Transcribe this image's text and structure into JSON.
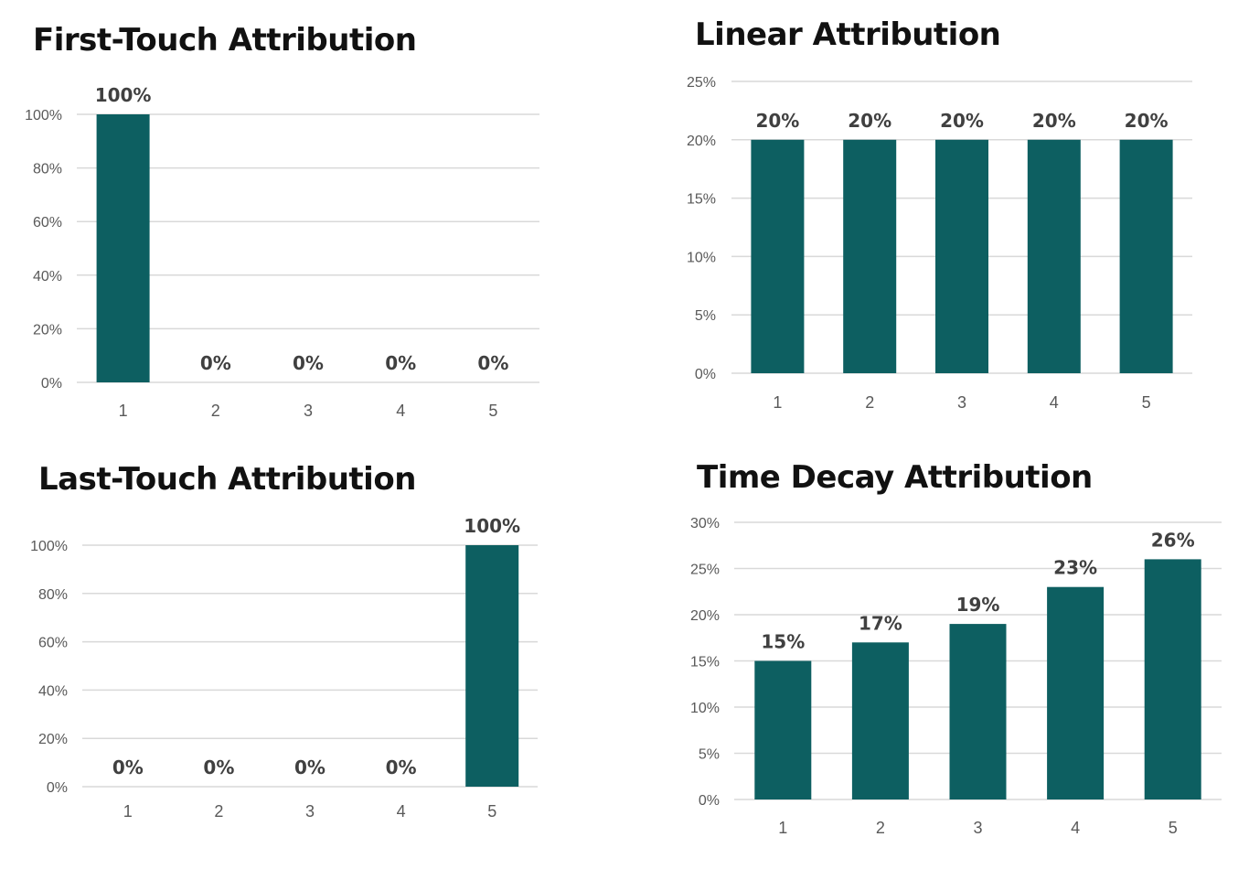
{
  "colors": {
    "bar": "#0d5f61",
    "grid": "#d9d9d9",
    "label": "#404040",
    "tick": "#595959"
  },
  "chart_data": [
    {
      "type": "bar",
      "title": "First-Touch Attribution",
      "categories": [
        "1",
        "2",
        "3",
        "4",
        "5"
      ],
      "values": [
        100,
        0,
        0,
        0,
        0
      ],
      "data_labels": [
        "100%",
        "0%",
        "0%",
        "0%",
        "0%"
      ],
      "yticks": [
        "0%",
        "20%",
        "40%",
        "60%",
        "80%",
        "100%"
      ],
      "ylim": [
        0,
        100
      ],
      "grid": true,
      "legend": "none"
    },
    {
      "type": "bar",
      "title": "Linear Attribution",
      "categories": [
        "1",
        "2",
        "3",
        "4",
        "5"
      ],
      "values": [
        20,
        20,
        20,
        20,
        20
      ],
      "data_labels": [
        "20%",
        "20%",
        "20%",
        "20%",
        "20%"
      ],
      "yticks": [
        "0%",
        "5%",
        "10%",
        "15%",
        "20%",
        "25%"
      ],
      "ylim": [
        0,
        25
      ],
      "grid": true,
      "legend": "none"
    },
    {
      "type": "bar",
      "title": "Last-Touch Attribution",
      "categories": [
        "1",
        "2",
        "3",
        "4",
        "5"
      ],
      "values": [
        0,
        0,
        0,
        0,
        100
      ],
      "data_labels": [
        "0%",
        "0%",
        "0%",
        "0%",
        "100%"
      ],
      "yticks": [
        "0%",
        "20%",
        "40%",
        "60%",
        "80%",
        "100%"
      ],
      "ylim": [
        0,
        100
      ],
      "grid": true,
      "legend": "none"
    },
    {
      "type": "bar",
      "title": "Time Decay Attribution",
      "categories": [
        "1",
        "2",
        "3",
        "4",
        "5"
      ],
      "values": [
        15,
        17,
        19,
        23,
        26
      ],
      "data_labels": [
        "15%",
        "17%",
        "19%",
        "23%",
        "26%"
      ],
      "yticks": [
        "0%",
        "5%",
        "10%",
        "15%",
        "20%",
        "25%",
        "30%"
      ],
      "ylim": [
        0,
        30
      ],
      "grid": true,
      "legend": "none"
    }
  ]
}
